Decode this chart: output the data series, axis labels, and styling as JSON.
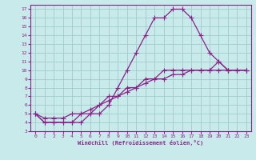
{
  "title": "",
  "xlabel": "Windchill (Refroidissement éolien,°C)",
  "ylabel": "",
  "xlim": [
    -0.5,
    23.5
  ],
  "ylim": [
    3,
    17.5
  ],
  "yticks": [
    3,
    4,
    5,
    6,
    7,
    8,
    9,
    10,
    11,
    12,
    13,
    14,
    15,
    16,
    17
  ],
  "xticks": [
    0,
    1,
    2,
    3,
    4,
    5,
    6,
    7,
    8,
    9,
    10,
    11,
    12,
    13,
    14,
    15,
    16,
    17,
    18,
    19,
    20,
    21,
    22,
    23
  ],
  "bg_color": "#c8eaea",
  "line_color": "#882288",
  "grid_color": "#a0cccc",
  "line1_x": [
    0,
    1,
    2,
    3,
    4,
    5,
    6,
    7,
    8,
    9,
    10,
    11,
    12,
    13,
    14,
    15,
    16,
    17,
    18,
    19,
    20,
    21,
    22,
    23
  ],
  "line1_y": [
    5,
    4,
    4,
    4,
    4,
    4,
    5,
    5,
    6,
    8,
    10,
    12,
    14,
    16,
    16,
    17,
    17,
    16,
    14,
    12,
    11,
    10,
    10,
    10
  ],
  "line2_x": [
    0,
    1,
    2,
    3,
    4,
    5,
    6,
    7,
    8,
    9,
    10,
    11,
    12,
    13,
    14,
    15,
    16,
    17,
    18,
    19,
    20,
    21,
    22,
    23
  ],
  "line2_y": [
    5,
    4,
    4,
    4,
    4,
    5,
    5,
    6,
    7,
    7,
    8,
    8,
    9,
    9,
    10,
    10,
    10,
    10,
    10,
    10,
    11,
    10,
    10,
    10
  ],
  "line3_x": [
    0,
    1,
    2,
    3,
    4,
    5,
    6,
    7,
    8,
    9,
    10,
    11,
    12,
    13,
    14,
    15,
    16,
    17,
    18,
    19,
    20,
    21,
    22,
    23
  ],
  "line3_y": [
    5,
    4.5,
    4.5,
    4.5,
    5,
    5,
    5.5,
    6,
    6.5,
    7,
    7.5,
    8,
    8.5,
    9,
    9,
    9.5,
    9.5,
    10,
    10,
    10,
    10,
    10,
    10,
    10
  ],
  "marker": "+",
  "markersize": 4,
  "linewidth": 0.9
}
